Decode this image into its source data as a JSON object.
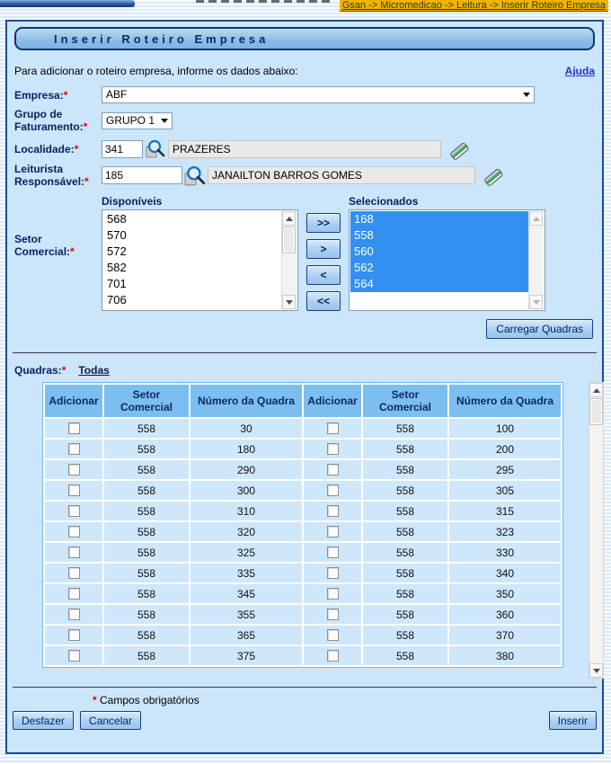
{
  "breadcrumb": "Gsan -> Micromedicao -> Leitura -> Inserir Roteiro Empresa",
  "title": "Inserir Roteiro Empresa",
  "intro": "Para adicionar o roteiro empresa, informe os dados abaixo:",
  "help_link": "Ajuda",
  "required_mark": "*",
  "fields": {
    "empresa": {
      "label": "Empresa:",
      "value": "ABF"
    },
    "grupo": {
      "label_line1": "Grupo de",
      "label_line2": "Faturamento:",
      "value": "GRUPO 1"
    },
    "localidade": {
      "label": "Localidade:",
      "code": "341",
      "name": "PRAZERES"
    },
    "leiturista": {
      "label_line1": "Leiturista",
      "label_line2": "Responsável:",
      "code": "185",
      "name": "JANAILTON BARROS GOMES"
    },
    "setor": {
      "label_line1": "Setor",
      "label_line2": "Comercial:"
    }
  },
  "dual_list": {
    "available_label": "Disponíveis",
    "selected_label": "Selecionados",
    "available_items": [
      "568",
      "570",
      "572",
      "582",
      "701",
      "706"
    ],
    "selected_items": [
      "168",
      "558",
      "560",
      "562",
      "564"
    ],
    "buttons": {
      "all_right": ">>",
      "right": ">",
      "left": "<",
      "all_left": "<<"
    }
  },
  "carregar_quadras_label": "Carregar Quadras",
  "quadras": {
    "label": "Quadras:",
    "todas_link": "Todas"
  },
  "table": {
    "headers": [
      "Adicionar",
      "Setor Comercial",
      "Número da Quadra",
      "Adicionar",
      "Setor Comercial",
      "Número da Quadra"
    ],
    "rows": [
      [
        "558",
        "30",
        "558",
        "100"
      ],
      [
        "558",
        "180",
        "558",
        "200"
      ],
      [
        "558",
        "290",
        "558",
        "295"
      ],
      [
        "558",
        "300",
        "558",
        "305"
      ],
      [
        "558",
        "310",
        "558",
        "315"
      ],
      [
        "558",
        "320",
        "558",
        "323"
      ],
      [
        "558",
        "325",
        "558",
        "330"
      ],
      [
        "558",
        "335",
        "558",
        "340"
      ],
      [
        "558",
        "345",
        "558",
        "350"
      ],
      [
        "558",
        "355",
        "558",
        "360"
      ],
      [
        "558",
        "365",
        "558",
        "370"
      ],
      [
        "558",
        "375",
        "558",
        "380"
      ]
    ]
  },
  "footer": {
    "required_note": "Campos obrigatórios",
    "desfazer_label": "Desfazer",
    "cancelar_label": "Cancelar",
    "inserir_label": "Inserir"
  },
  "colors": {
    "breadcrumb_gold": "#edb400",
    "panel_bg": "#cbe5fa",
    "panel_border": "#1e4c8f",
    "table_header_blue": "#7cbeef",
    "table_cell_blue": "#cee7fb",
    "selection_blue": "#3390f2",
    "link_blue": "#2233cc",
    "required_red": "#e00000",
    "button_face": "#aacdf0"
  }
}
